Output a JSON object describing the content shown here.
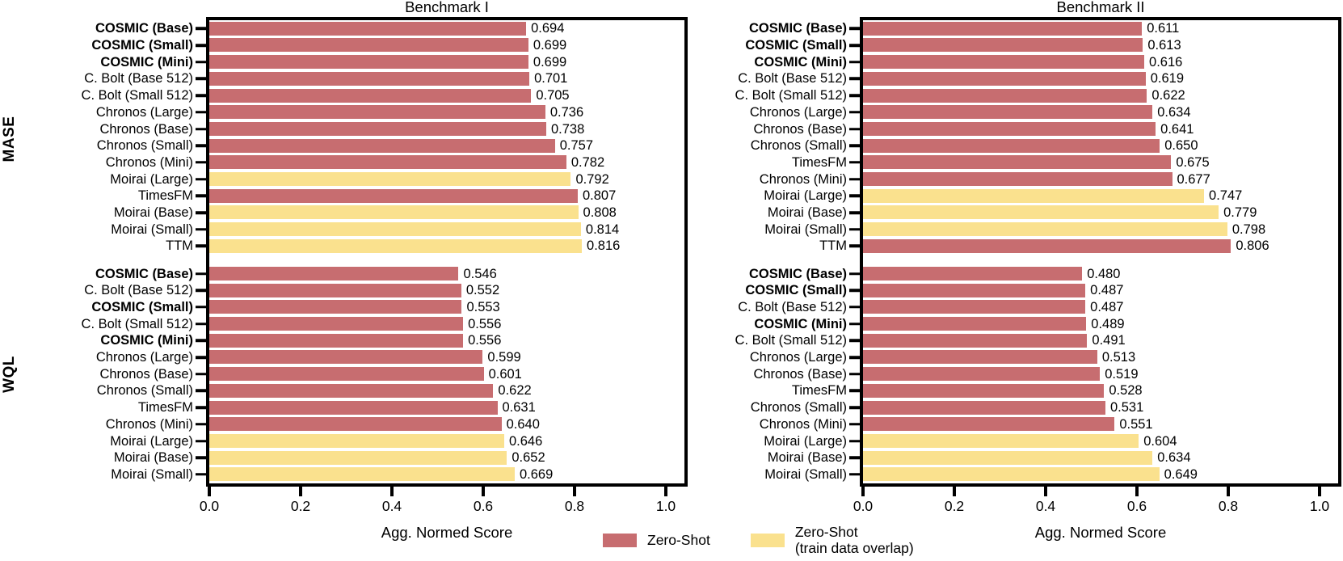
{
  "metric_labels": [
    "MASE",
    "WQL"
  ],
  "colors": {
    "zero_shot": "#c76d70",
    "zero_shot_overlap": "#fae18e",
    "axis": "#000000",
    "text": "#000000",
    "background": "#ffffff"
  },
  "legend": {
    "items": [
      {
        "name": "zero-shot",
        "label": "Zero-Shot",
        "color": "#c76d70"
      },
      {
        "name": "zero-shot-overlap",
        "line1": "Zero-Shot",
        "line2": "(train data overlap)",
        "color": "#fae18e"
      }
    ]
  },
  "chart_data": [
    {
      "type": "bar",
      "orientation": "horizontal",
      "title": "Benchmark I",
      "xlabel": "Agg. Normed Score",
      "xlim": [
        0,
        1.04
      ],
      "xticks": [
        0.0,
        0.2,
        0.4,
        0.6,
        0.8,
        1.0
      ],
      "xticklabels": [
        "0.0",
        "0.2",
        "0.4",
        "0.6",
        "0.8",
        "1.0"
      ],
      "grid": false,
      "groups": [
        {
          "metric": "MASE",
          "rows": [
            {
              "label": "COSMIC (Base)",
              "value": 0.694,
              "bold": true,
              "overlap": false
            },
            {
              "label": "COSMIC (Small)",
              "value": 0.699,
              "bold": true,
              "overlap": false
            },
            {
              "label": "COSMIC (Mini)",
              "value": 0.699,
              "bold": true,
              "overlap": false
            },
            {
              "label": "C. Bolt (Base 512)",
              "value": 0.701,
              "bold": false,
              "overlap": false
            },
            {
              "label": "C. Bolt (Small 512)",
              "value": 0.705,
              "bold": false,
              "overlap": false
            },
            {
              "label": "Chronos (Large)",
              "value": 0.736,
              "bold": false,
              "overlap": false
            },
            {
              "label": "Chronos (Base)",
              "value": 0.738,
              "bold": false,
              "overlap": false
            },
            {
              "label": "Chronos (Small)",
              "value": 0.757,
              "bold": false,
              "overlap": false
            },
            {
              "label": "Chronos (Mini)",
              "value": 0.782,
              "bold": false,
              "overlap": false
            },
            {
              "label": "Moirai (Large)",
              "value": 0.792,
              "bold": false,
              "overlap": true
            },
            {
              "label": "TimesFM",
              "value": 0.807,
              "bold": false,
              "overlap": false
            },
            {
              "label": "Moirai (Base)",
              "value": 0.808,
              "bold": false,
              "overlap": true
            },
            {
              "label": "Moirai (Small)",
              "value": 0.814,
              "bold": false,
              "overlap": true
            },
            {
              "label": "TTM",
              "value": 0.816,
              "bold": false,
              "overlap": true
            }
          ]
        },
        {
          "metric": "WQL",
          "rows": [
            {
              "label": "COSMIC (Base)",
              "value": 0.546,
              "bold": true,
              "overlap": false
            },
            {
              "label": "C. Bolt (Base 512)",
              "value": 0.552,
              "bold": false,
              "overlap": false
            },
            {
              "label": "COSMIC (Small)",
              "value": 0.553,
              "bold": true,
              "overlap": false
            },
            {
              "label": "C. Bolt (Small 512)",
              "value": 0.556,
              "bold": false,
              "overlap": false
            },
            {
              "label": "COSMIC (Mini)",
              "value": 0.556,
              "bold": true,
              "overlap": false
            },
            {
              "label": "Chronos (Large)",
              "value": 0.599,
              "bold": false,
              "overlap": false
            },
            {
              "label": "Chronos (Base)",
              "value": 0.601,
              "bold": false,
              "overlap": false
            },
            {
              "label": "Chronos (Small)",
              "value": 0.622,
              "bold": false,
              "overlap": false
            },
            {
              "label": "TimesFM",
              "value": 0.631,
              "bold": false,
              "overlap": false
            },
            {
              "label": "Chronos (Mini)",
              "value": 0.64,
              "bold": false,
              "overlap": false
            },
            {
              "label": "Moirai (Large)",
              "value": 0.646,
              "bold": false,
              "overlap": true
            },
            {
              "label": "Moirai (Base)",
              "value": 0.652,
              "bold": false,
              "overlap": true
            },
            {
              "label": "Moirai (Small)",
              "value": 0.669,
              "bold": false,
              "overlap": true
            }
          ]
        }
      ]
    },
    {
      "type": "bar",
      "orientation": "horizontal",
      "title": "Benchmark II",
      "xlabel": "Agg. Normed Score",
      "xlim": [
        0,
        1.04
      ],
      "xticks": [
        0.0,
        0.2,
        0.4,
        0.6,
        0.8,
        1.0
      ],
      "xticklabels": [
        "0.0",
        "0.2",
        "0.4",
        "0.6",
        "0.8",
        "1.0"
      ],
      "grid": false,
      "groups": [
        {
          "metric": "MASE",
          "rows": [
            {
              "label": "COSMIC (Base)",
              "value": 0.611,
              "bold": true,
              "overlap": false
            },
            {
              "label": "COSMIC (Small)",
              "value": 0.613,
              "bold": true,
              "overlap": false
            },
            {
              "label": "COSMIC (Mini)",
              "value": 0.616,
              "bold": true,
              "overlap": false
            },
            {
              "label": "C. Bolt (Base 512)",
              "value": 0.619,
              "bold": false,
              "overlap": false
            },
            {
              "label": "C. Bolt (Small 512)",
              "value": 0.622,
              "bold": false,
              "overlap": false
            },
            {
              "label": "Chronos (Large)",
              "value": 0.634,
              "bold": false,
              "overlap": false
            },
            {
              "label": "Chronos (Base)",
              "value": 0.641,
              "bold": false,
              "overlap": false
            },
            {
              "label": "Chronos (Small)",
              "value": 0.65,
              "bold": false,
              "overlap": false
            },
            {
              "label": "TimesFM",
              "value": 0.675,
              "bold": false,
              "overlap": false
            },
            {
              "label": "Chronos (Mini)",
              "value": 0.677,
              "bold": false,
              "overlap": false
            },
            {
              "label": "Moirai (Large)",
              "value": 0.747,
              "bold": false,
              "overlap": true
            },
            {
              "label": "Moirai (Base)",
              "value": 0.779,
              "bold": false,
              "overlap": true
            },
            {
              "label": "Moirai (Small)",
              "value": 0.798,
              "bold": false,
              "overlap": true
            },
            {
              "label": "TTM",
              "value": 0.806,
              "bold": false,
              "overlap": false
            }
          ]
        },
        {
          "metric": "WQL",
          "rows": [
            {
              "label": "COSMIC (Base)",
              "value": 0.48,
              "bold": true,
              "overlap": false
            },
            {
              "label": "COSMIC (Small)",
              "value": 0.487,
              "bold": true,
              "overlap": false
            },
            {
              "label": "C. Bolt (Base 512)",
              "value": 0.487,
              "bold": false,
              "overlap": false
            },
            {
              "label": "COSMIC (Mini)",
              "value": 0.489,
              "bold": true,
              "overlap": false
            },
            {
              "label": "C. Bolt (Small 512)",
              "value": 0.491,
              "bold": false,
              "overlap": false
            },
            {
              "label": "Chronos (Large)",
              "value": 0.513,
              "bold": false,
              "overlap": false
            },
            {
              "label": "Chronos (Base)",
              "value": 0.519,
              "bold": false,
              "overlap": false
            },
            {
              "label": "TimesFM",
              "value": 0.528,
              "bold": false,
              "overlap": false
            },
            {
              "label": "Chronos (Small)",
              "value": 0.531,
              "bold": false,
              "overlap": false
            },
            {
              "label": "Chronos (Mini)",
              "value": 0.551,
              "bold": false,
              "overlap": false
            },
            {
              "label": "Moirai (Large)",
              "value": 0.604,
              "bold": false,
              "overlap": true
            },
            {
              "label": "Moirai (Base)",
              "value": 0.634,
              "bold": false,
              "overlap": true
            },
            {
              "label": "Moirai (Small)",
              "value": 0.649,
              "bold": false,
              "overlap": true
            }
          ]
        }
      ]
    }
  ]
}
